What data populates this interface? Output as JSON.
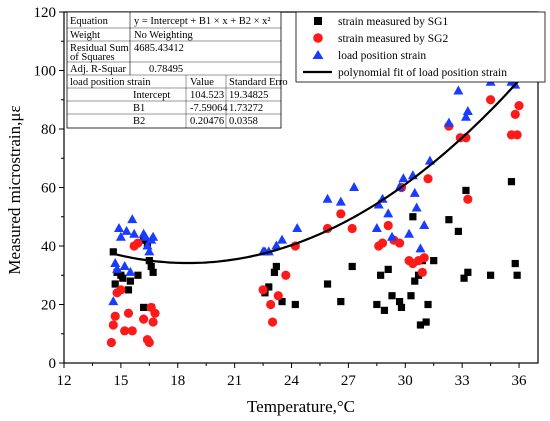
{
  "chart_data": {
    "type": "scatter",
    "xlabel": "Temperature,°C",
    "ylabel": "Measured microstrain,με",
    "xlim": [
      12,
      37
    ],
    "ylim": [
      0,
      120
    ],
    "xticks": [
      "12",
      "15",
      "18",
      "21",
      "24",
      "27",
      "30",
      "33",
      "36"
    ],
    "yticks": [
      "0",
      "20",
      "40",
      "60",
      "80",
      "100",
      "120"
    ],
    "legend_position": "top-right",
    "colors": {
      "sg1": "#000000",
      "sg2": "#ff1a1a",
      "load": "#1a3cff",
      "fit": "#000000"
    },
    "series": [
      {
        "name": "strain measured by SG1",
        "marker": "square",
        "points": [
          [
            14.6,
            38
          ],
          [
            14.8,
            31
          ],
          [
            15.0,
            30
          ],
          [
            14.7,
            27
          ],
          [
            15.1,
            29
          ],
          [
            15.4,
            25
          ],
          [
            15.5,
            28
          ],
          [
            15.9,
            30
          ],
          [
            16.2,
            42
          ],
          [
            16.4,
            41
          ],
          [
            16.5,
            35
          ],
          [
            16.6,
            33
          ],
          [
            16.7,
            31
          ],
          [
            16.2,
            19
          ],
          [
            16.6,
            19
          ],
          [
            22.6,
            24
          ],
          [
            22.8,
            26
          ],
          [
            23.1,
            31
          ],
          [
            23.2,
            33
          ],
          [
            23.5,
            21
          ],
          [
            24.2,
            20
          ],
          [
            25.9,
            27
          ],
          [
            26.6,
            21
          ],
          [
            27.2,
            33
          ],
          [
            28.5,
            20
          ],
          [
            28.7,
            30
          ],
          [
            28.9,
            18
          ],
          [
            29.1,
            32
          ],
          [
            29.3,
            23
          ],
          [
            29.7,
            21
          ],
          [
            29.8,
            19
          ],
          [
            30.3,
            23
          ],
          [
            30.4,
            50
          ],
          [
            30.5,
            28
          ],
          [
            30.7,
            30
          ],
          [
            30.8,
            13
          ],
          [
            30.9,
            35
          ],
          [
            31.1,
            14
          ],
          [
            31.2,
            20
          ],
          [
            31.5,
            35
          ],
          [
            32.3,
            49
          ],
          [
            32.8,
            45
          ],
          [
            33.1,
            29
          ],
          [
            33.2,
            59
          ],
          [
            33.3,
            31
          ],
          [
            34.5,
            30
          ],
          [
            35.6,
            62
          ],
          [
            35.8,
            34
          ],
          [
            35.9,
            30
          ]
        ]
      },
      {
        "name": "strain measured by SG2",
        "marker": "circle",
        "points": [
          [
            14.5,
            7
          ],
          [
            14.6,
            13
          ],
          [
            14.7,
            16
          ],
          [
            14.8,
            24
          ],
          [
            15.0,
            25
          ],
          [
            15.2,
            11
          ],
          [
            15.4,
            17
          ],
          [
            15.6,
            11
          ],
          [
            15.7,
            40
          ],
          [
            15.9,
            41
          ],
          [
            16.2,
            15
          ],
          [
            16.4,
            8
          ],
          [
            16.5,
            7
          ],
          [
            16.6,
            19
          ],
          [
            16.7,
            14
          ],
          [
            16.8,
            17
          ],
          [
            22.5,
            25
          ],
          [
            22.9,
            20
          ],
          [
            23.0,
            14
          ],
          [
            23.3,
            23
          ],
          [
            23.7,
            30
          ],
          [
            24.2,
            40
          ],
          [
            25.9,
            46
          ],
          [
            26.6,
            51
          ],
          [
            27.2,
            46
          ],
          [
            28.6,
            40
          ],
          [
            28.8,
            41
          ],
          [
            29.1,
            47
          ],
          [
            29.4,
            42
          ],
          [
            29.7,
            41
          ],
          [
            29.8,
            60
          ],
          [
            30.2,
            35
          ],
          [
            30.4,
            34
          ],
          [
            30.7,
            35
          ],
          [
            30.9,
            31
          ],
          [
            31.0,
            36
          ],
          [
            31.2,
            63
          ],
          [
            32.3,
            81
          ],
          [
            32.9,
            77
          ],
          [
            33.2,
            77
          ],
          [
            33.3,
            56
          ],
          [
            34.5,
            90
          ],
          [
            35.6,
            78
          ],
          [
            35.8,
            85
          ],
          [
            35.9,
            78
          ],
          [
            36.0,
            88
          ]
        ]
      },
      {
        "name": "load position strain",
        "marker": "triangle",
        "points": [
          [
            14.6,
            21
          ],
          [
            14.7,
            34
          ],
          [
            14.8,
            32
          ],
          [
            14.9,
            46
          ],
          [
            15.0,
            43
          ],
          [
            15.2,
            33
          ],
          [
            15.3,
            45
          ],
          [
            15.5,
            31
          ],
          [
            15.6,
            49
          ],
          [
            15.7,
            44
          ],
          [
            16.2,
            44
          ],
          [
            16.3,
            43
          ],
          [
            16.4,
            40
          ],
          [
            16.5,
            38
          ],
          [
            16.6,
            42
          ],
          [
            16.7,
            43
          ],
          [
            22.5,
            38
          ],
          [
            22.6,
            38
          ],
          [
            22.8,
            38
          ],
          [
            23.2,
            40
          ],
          [
            23.5,
            42
          ],
          [
            24.3,
            46
          ],
          [
            25.9,
            56
          ],
          [
            26.6,
            55
          ],
          [
            27.3,
            60
          ],
          [
            28.5,
            46
          ],
          [
            28.6,
            54
          ],
          [
            28.8,
            56
          ],
          [
            29.1,
            51
          ],
          [
            29.3,
            43
          ],
          [
            29.7,
            60
          ],
          [
            29.9,
            63
          ],
          [
            30.2,
            44
          ],
          [
            30.4,
            64
          ],
          [
            30.5,
            58
          ],
          [
            30.6,
            53
          ],
          [
            30.8,
            39
          ],
          [
            31.0,
            47
          ],
          [
            31.3,
            69
          ],
          [
            32.3,
            82
          ],
          [
            32.8,
            93
          ],
          [
            33.2,
            84
          ],
          [
            33.3,
            86
          ],
          [
            34.5,
            96
          ],
          [
            35.6,
            96
          ],
          [
            35.8,
            95
          ]
        ]
      }
    ],
    "fit": {
      "name": "polynomial fit of load position strain",
      "model": "y = Intercept + B1 × x + B2 × x²",
      "intercept": 104.523,
      "b1": -7.59064,
      "b2": 0.20476,
      "x_range": [
        14.5,
        36.0
      ]
    },
    "stats_table": {
      "rows": [
        [
          "Equation",
          "y = Intercept + B1 × x + B2 × x²"
        ],
        [
          "Weight",
          "No Weighting"
        ],
        [
          "Residual Sum",
          "4685.43412"
        ],
        [
          "of Squares",
          ""
        ],
        [
          "Adj. R-Squar",
          "0.78495"
        ]
      ],
      "sub_header": [
        "load position strain",
        "Value",
        "Standard Erro"
      ],
      "params": [
        [
          "Intercept",
          "104.523",
          "19.34825"
        ],
        [
          "B1",
          "-7.59064",
          "1.73272"
        ],
        [
          "B2",
          "0.20476",
          "0.0358"
        ]
      ]
    }
  }
}
